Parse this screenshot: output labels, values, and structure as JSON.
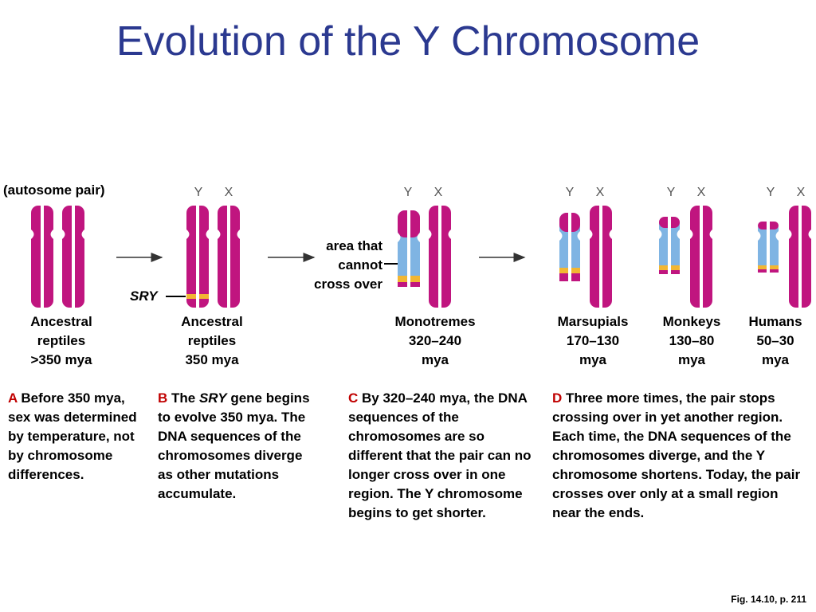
{
  "title": "Evolution of the Y Chromosome",
  "autosome_label": "(autosome pair)",
  "area_note": "area that\ncannot\ncross over",
  "sry_label": "SRY",
  "y_label": "Y",
  "x_label": "X",
  "stages": [
    {
      "label": "Ancestral\nreptiles\n>350 mya"
    },
    {
      "label": "Ancestral\nreptiles\n350 mya"
    },
    {
      "label": "Monotremes\n320–240\nmya"
    },
    {
      "label": "Marsupials\n170–130\nmya"
    },
    {
      "label": "Monkeys\n130–80\nmya"
    },
    {
      "label": "Humans\n50–30\nmya"
    }
  ],
  "captions": [
    {
      "letter": "A",
      "text": " Before 350 mya, sex was determined by temperature, not by chromosome differences."
    },
    {
      "letter": "B",
      "pre": " The ",
      "em": "SRY",
      "text": " gene begins to evolve 350 mya. The DNA sequences of the chromosomes diverge as other mutations accumulate."
    },
    {
      "letter": "C",
      "text": " By 320–240 mya, the DNA sequences of the chromosomes are so different that the pair can no longer cross over in one region. The Y chromosome begins to get shorter."
    },
    {
      "letter": "D",
      "text": " Three more times, the pair stops crossing over in yet another region. Each time, the DNA sequences of the chromosomes diverge, and the Y chromosome shortens. Today, the pair crosses over only at a small region near the ends."
    }
  ],
  "figure_ref": "Fig. 14.10, p. 211",
  "colors": {
    "chromosome": "#c0157f",
    "non_crossover_region": "#7fb4e3",
    "sry_band": "#f2b632",
    "title": "#2b3990",
    "caption_letter": "#c00000"
  }
}
